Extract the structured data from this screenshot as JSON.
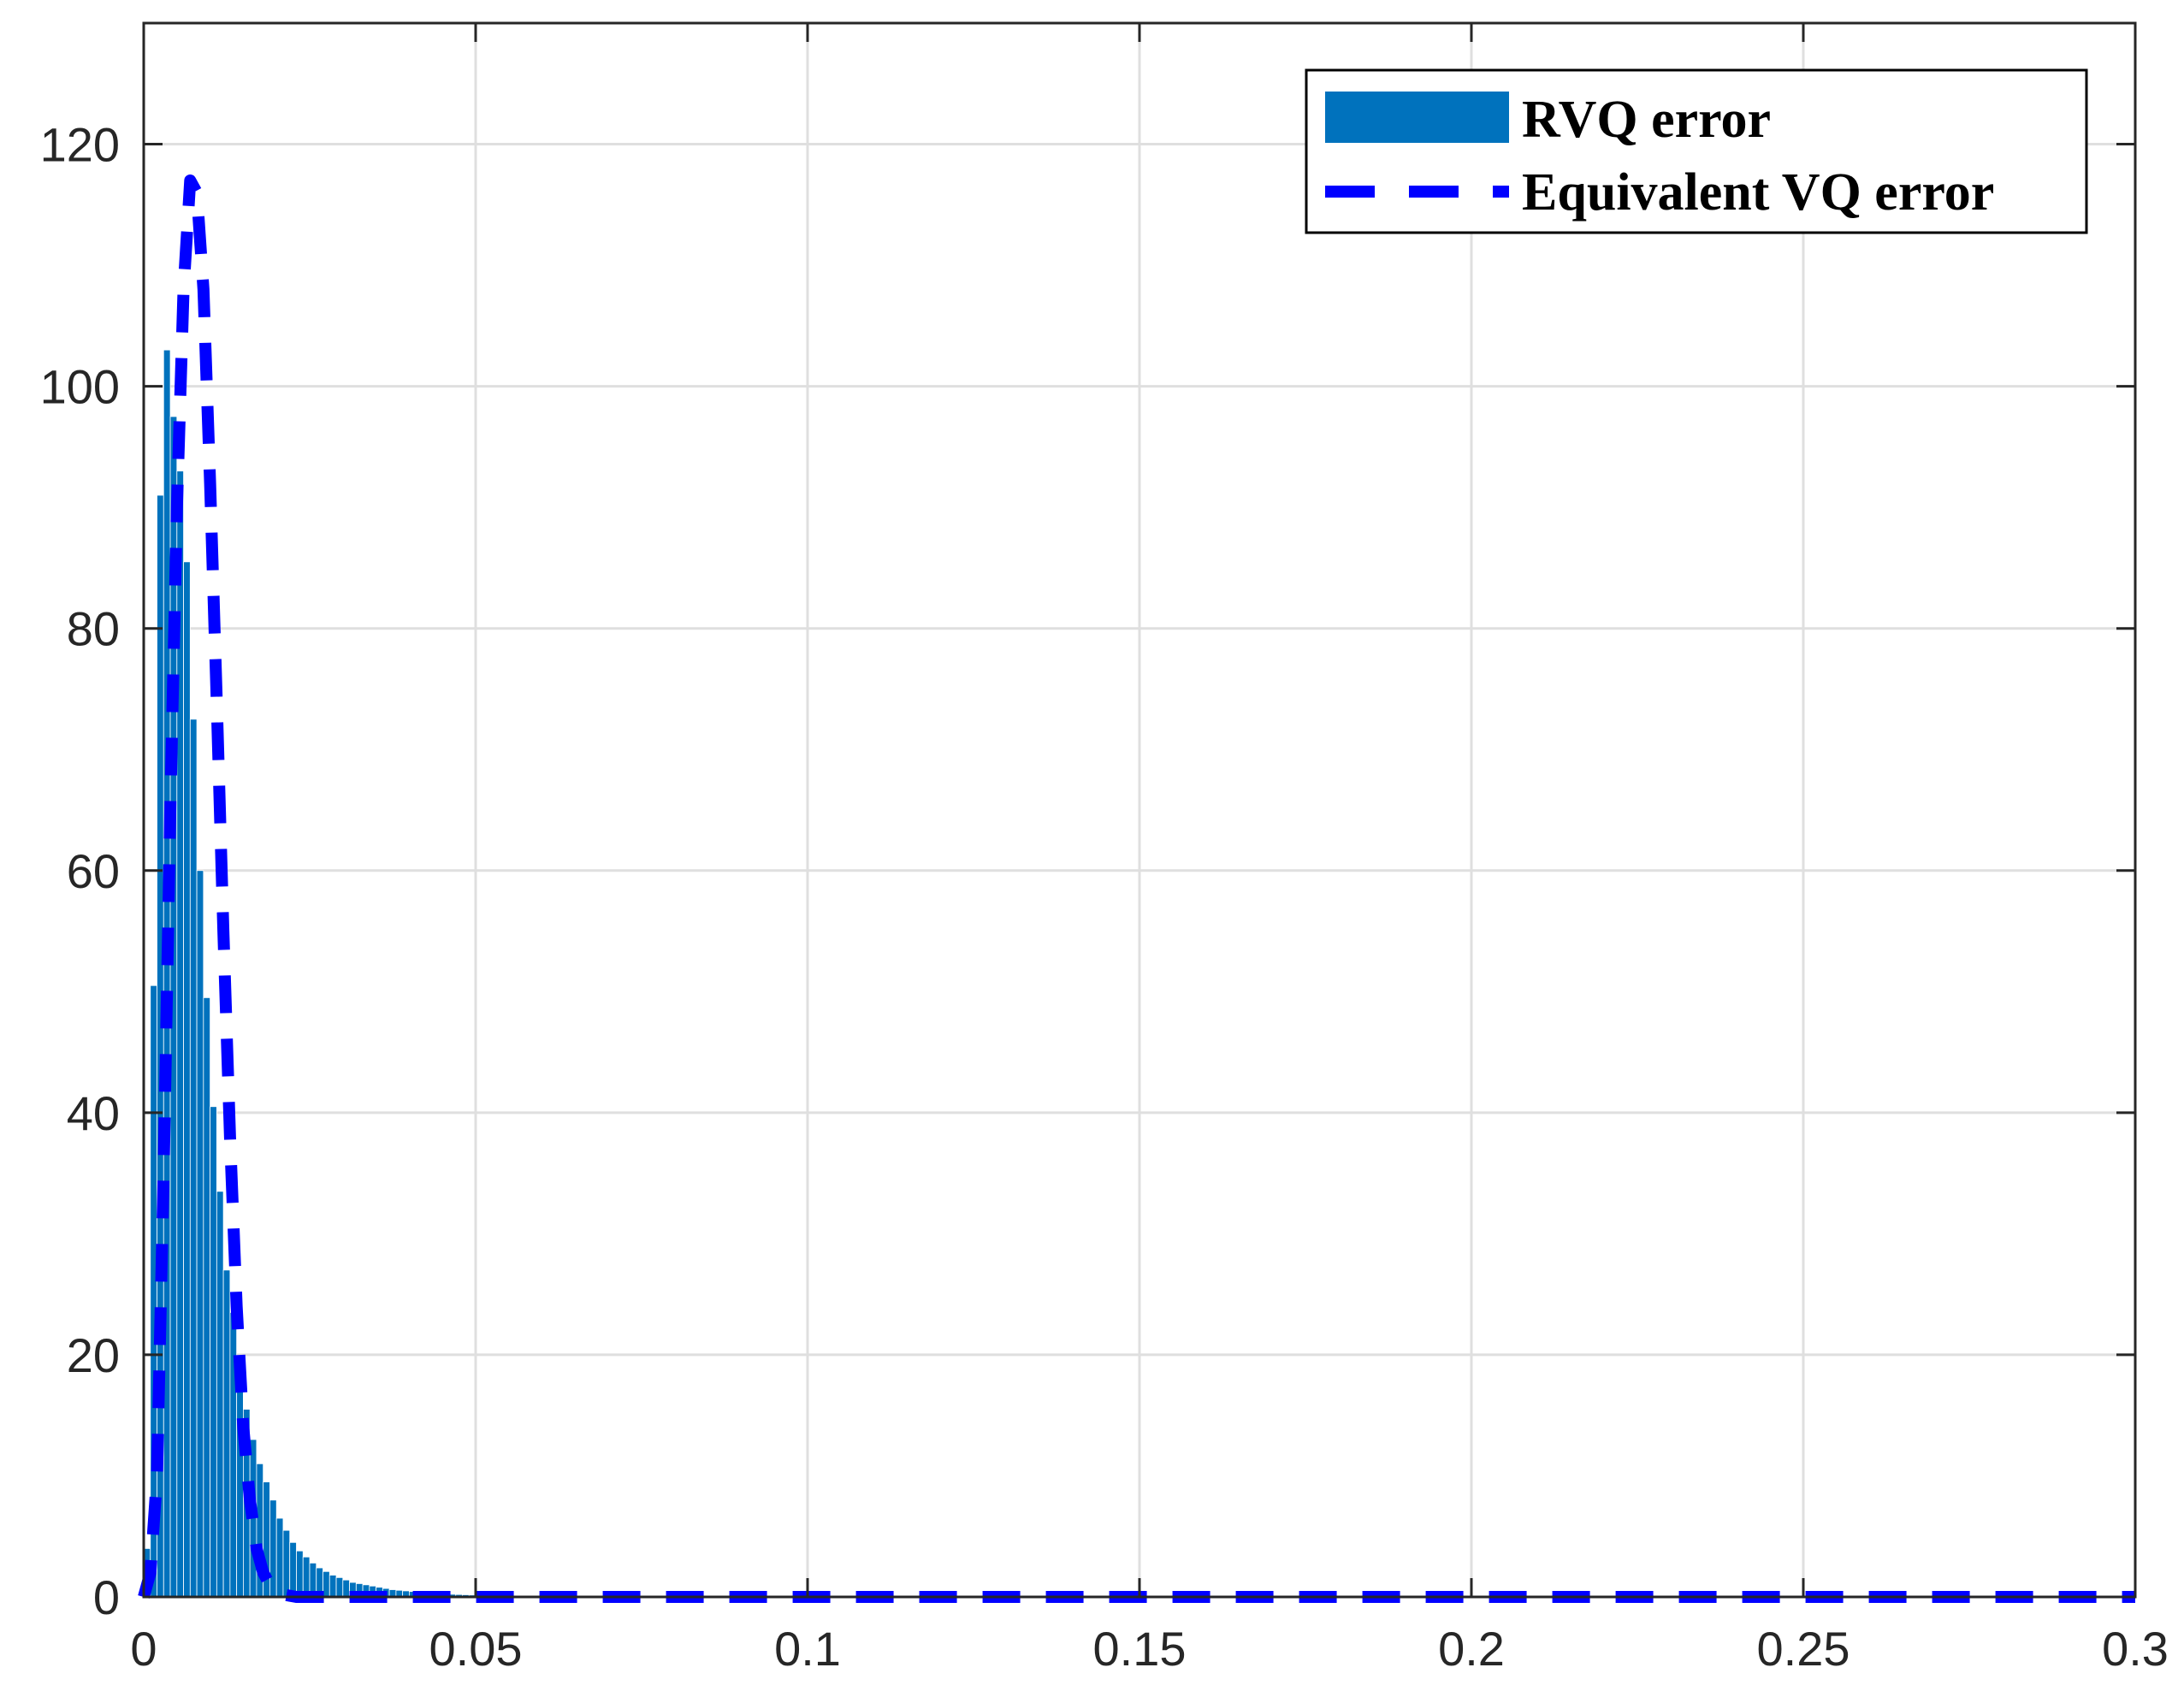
{
  "chart_data": {
    "type": "bar",
    "title": "",
    "xlabel": "",
    "ylabel": "",
    "xlim": [
      0,
      0.3
    ],
    "ylim": [
      0,
      130
    ],
    "xticks": [
      0,
      0.05,
      0.1,
      0.15,
      0.2,
      0.25,
      0.3
    ],
    "xtick_labels": [
      "0",
      "0.05",
      "0.1",
      "0.15",
      "0.2",
      "0.25",
      "0.3"
    ],
    "yticks": [
      0,
      20,
      40,
      60,
      80,
      100,
      120
    ],
    "ytick_labels": [
      "0",
      "20",
      "40",
      "60",
      "80",
      "100",
      "120"
    ],
    "grid": true,
    "legend_position": "top-right",
    "series": [
      {
        "name": "RVQ error",
        "kind": "histogram",
        "color": "#0072BD",
        "bin_width": 0.001,
        "x": [
          0.0005,
          0.0015,
          0.0025,
          0.0035,
          0.0045,
          0.0055,
          0.0065,
          0.0075,
          0.0085,
          0.0095,
          0.0105,
          0.0115,
          0.0125,
          0.0135,
          0.0145,
          0.0155,
          0.0165,
          0.0175,
          0.0185,
          0.0195,
          0.0205,
          0.0215,
          0.0225,
          0.0235,
          0.0245,
          0.0255,
          0.0265,
          0.0275,
          0.0285,
          0.0295,
          0.0305,
          0.0315,
          0.0325,
          0.0335,
          0.0345,
          0.0355,
          0.0365,
          0.0375,
          0.0385,
          0.0395,
          0.0405,
          0.0415,
          0.0425,
          0.0435,
          0.0445,
          0.0455,
          0.0465,
          0.0475,
          0.0485,
          0.0495,
          0.0505,
          0.0515,
          0.0525,
          0.0535,
          0.0545,
          0.0555,
          0.0565,
          0.0575,
          0.0585,
          0.0595
        ],
        "values": [
          4,
          50.5,
          91,
          103,
          97.5,
          93,
          85.5,
          72.5,
          60,
          49.5,
          40.5,
          33.5,
          27,
          23.5,
          19,
          15.5,
          13,
          11,
          9.5,
          8,
          6.5,
          5.5,
          4.5,
          3.8,
          3.3,
          2.8,
          2.4,
          2.1,
          1.8,
          1.6,
          1.4,
          1.2,
          1.1,
          1.0,
          0.9,
          0.8,
          0.7,
          0.6,
          0.55,
          0.5,
          0.45,
          0.4,
          0.35,
          0.3,
          0.28,
          0.25,
          0.22,
          0.2,
          0.18,
          0.16,
          0.14,
          0.12,
          0.1,
          0.09,
          0.08,
          0.07,
          0.06,
          0.05,
          0.04,
          0.03
        ]
      },
      {
        "name": "Equivalent VQ error",
        "kind": "line",
        "style": "dashed",
        "color": "#0000FF",
        "x": [
          0,
          0.001,
          0.002,
          0.003,
          0.004,
          0.005,
          0.006,
          0.007,
          0.008,
          0.009,
          0.01,
          0.011,
          0.012,
          0.013,
          0.014,
          0.015,
          0.016,
          0.017,
          0.018,
          0.019,
          0.02,
          0.021,
          0.022,
          0.023,
          0.025,
          0.03,
          0.05,
          0.1,
          0.15,
          0.2,
          0.25,
          0.3
        ],
        "values": [
          0,
          2,
          10,
          35,
          65,
          90,
          108,
          117,
          116,
          108,
          92,
          74,
          55,
          38,
          24,
          14,
          8,
          4,
          2,
          1,
          0.5,
          0.2,
          0.1,
          0,
          0,
          0,
          0,
          0,
          0,
          0,
          0,
          0
        ]
      }
    ]
  }
}
